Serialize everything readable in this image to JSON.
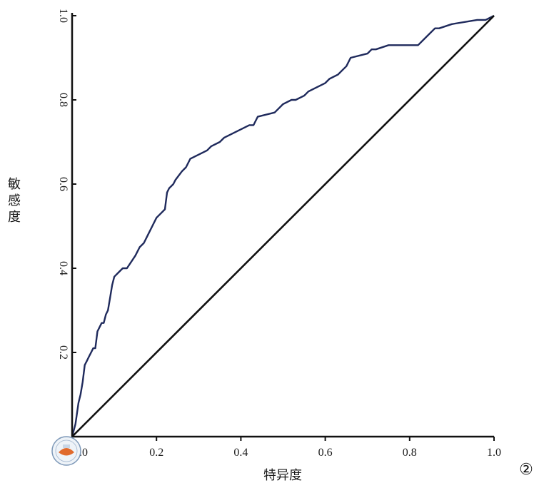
{
  "chart_data": {
    "type": "line",
    "title": "",
    "xlabel": "特异度",
    "ylabel_chars": [
      "敏",
      "感",
      "度"
    ],
    "xlim": [
      0,
      1
    ],
    "ylim": [
      0,
      1
    ],
    "x_ticks": [
      "0.0",
      "0.2",
      "0.4",
      "0.6",
      "0.8",
      "1.0"
    ],
    "y_ticks": [
      "0.2",
      "0.4",
      "0.6",
      "0.8",
      "1.0"
    ],
    "grid": false,
    "legend": "none",
    "figure_marker": "②",
    "series": [
      {
        "color": "#1f2a5c",
        "x": [
          0.0,
          0.008,
          0.015,
          0.02,
          0.025,
          0.03,
          0.035,
          0.04,
          0.05,
          0.055,
          0.06,
          0.07,
          0.075,
          0.08,
          0.085,
          0.09,
          0.095,
          0.1,
          0.11,
          0.12,
          0.13,
          0.15,
          0.16,
          0.17,
          0.18,
          0.19,
          0.2,
          0.21,
          0.22,
          0.225,
          0.23,
          0.24,
          0.245,
          0.26,
          0.27,
          0.28,
          0.3,
          0.32,
          0.33,
          0.35,
          0.36,
          0.38,
          0.4,
          0.42,
          0.43,
          0.44,
          0.48,
          0.49,
          0.5,
          0.52,
          0.53,
          0.55,
          0.56,
          0.58,
          0.6,
          0.61,
          0.63,
          0.64,
          0.65,
          0.66,
          0.7,
          0.71,
          0.72,
          0.75,
          0.82,
          0.83,
          0.85,
          0.86,
          0.87,
          0.9,
          0.96,
          0.98,
          1.0
        ],
        "y": [
          0.0,
          0.03,
          0.08,
          0.1,
          0.13,
          0.17,
          0.18,
          0.19,
          0.21,
          0.21,
          0.25,
          0.27,
          0.27,
          0.29,
          0.3,
          0.33,
          0.36,
          0.38,
          0.39,
          0.4,
          0.4,
          0.43,
          0.45,
          0.46,
          0.48,
          0.5,
          0.52,
          0.53,
          0.54,
          0.58,
          0.59,
          0.6,
          0.61,
          0.63,
          0.64,
          0.66,
          0.67,
          0.68,
          0.69,
          0.7,
          0.71,
          0.72,
          0.73,
          0.74,
          0.74,
          0.76,
          0.77,
          0.78,
          0.79,
          0.8,
          0.8,
          0.81,
          0.82,
          0.83,
          0.84,
          0.85,
          0.86,
          0.87,
          0.88,
          0.9,
          0.91,
          0.92,
          0.92,
          0.93,
          0.93,
          0.94,
          0.96,
          0.97,
          0.97,
          0.98,
          0.99,
          0.99,
          1.0
        ]
      },
      {
        "color": "#111111",
        "x": [
          0.0,
          1.0
        ],
        "y": [
          0.0,
          1.0
        ]
      }
    ]
  }
}
